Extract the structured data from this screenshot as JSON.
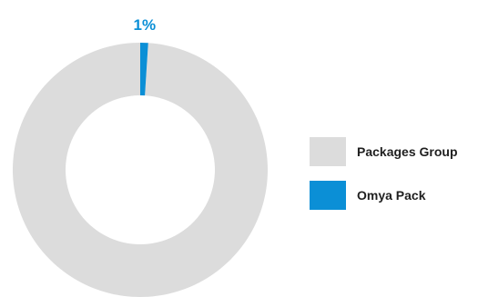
{
  "chart_data": {
    "type": "pie",
    "subtype": "donut",
    "slices": [
      {
        "label": "Packages Group",
        "value": 99,
        "color": "#dcdcdc"
      },
      {
        "label": "Omya Pack",
        "value": 1,
        "color": "#0b8fd6"
      }
    ],
    "data_labels": [
      {
        "slice": "Omya Pack",
        "text": "1%",
        "color": "#0b8fd6"
      }
    ],
    "legend": {
      "placement": "right",
      "entries": [
        {
          "label": "Packages Group",
          "color": "#dcdcdc"
        },
        {
          "label": "Omya Pack",
          "color": "#0b8fd6"
        }
      ]
    }
  }
}
